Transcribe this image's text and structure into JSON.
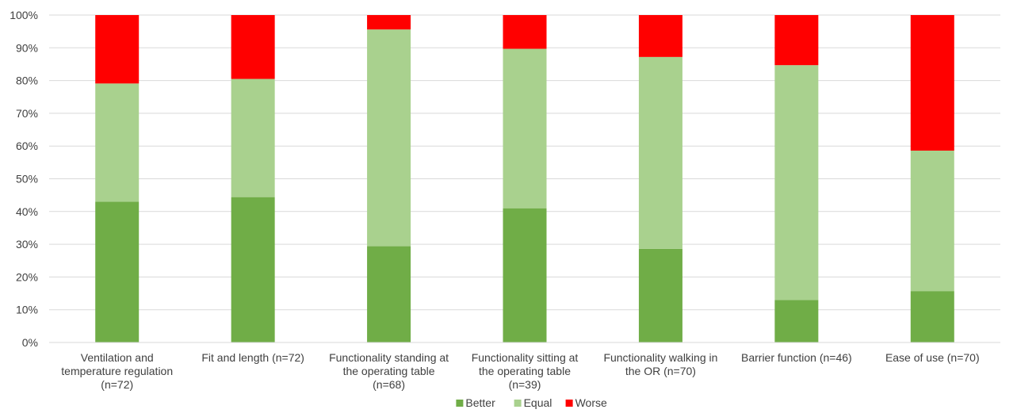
{
  "chart_data": {
    "type": "bar",
    "stacked": true,
    "percent": true,
    "categories": [
      [
        "Ventilation and",
        "temperature regulation",
        "(n=72)"
      ],
      [
        "Fit and length (n=72)"
      ],
      [
        "Functionality standing at",
        "the operating table",
        "(n=68)"
      ],
      [
        "Functionality sitting at",
        "the operating table",
        "(n=39)"
      ],
      [
        "Functionality walking in",
        "the OR (n=70)"
      ],
      [
        "Barrier function (n=46)"
      ],
      [
        "Ease of use (n=70)"
      ]
    ],
    "series": [
      {
        "name": "Better",
        "color": "#70AD47",
        "values": [
          43,
          44.4,
          29.4,
          41.0,
          28.6,
          13.0,
          15.7
        ]
      },
      {
        "name": "Equal",
        "color": "#A9D18E",
        "values": [
          36.1,
          36.1,
          66.2,
          48.7,
          58.6,
          71.7,
          42.9
        ]
      },
      {
        "name": "Worse",
        "color": "#FF0000",
        "values": [
          20.9,
          19.5,
          4.4,
          10.3,
          12.8,
          15.3,
          41.4
        ]
      }
    ],
    "yticks": [
      "0%",
      "10%",
      "20%",
      "30%",
      "40%",
      "50%",
      "60%",
      "70%",
      "80%",
      "90%",
      "100%"
    ],
    "ylim": [
      0,
      100
    ],
    "grid": true,
    "legend_position": "bottom"
  }
}
